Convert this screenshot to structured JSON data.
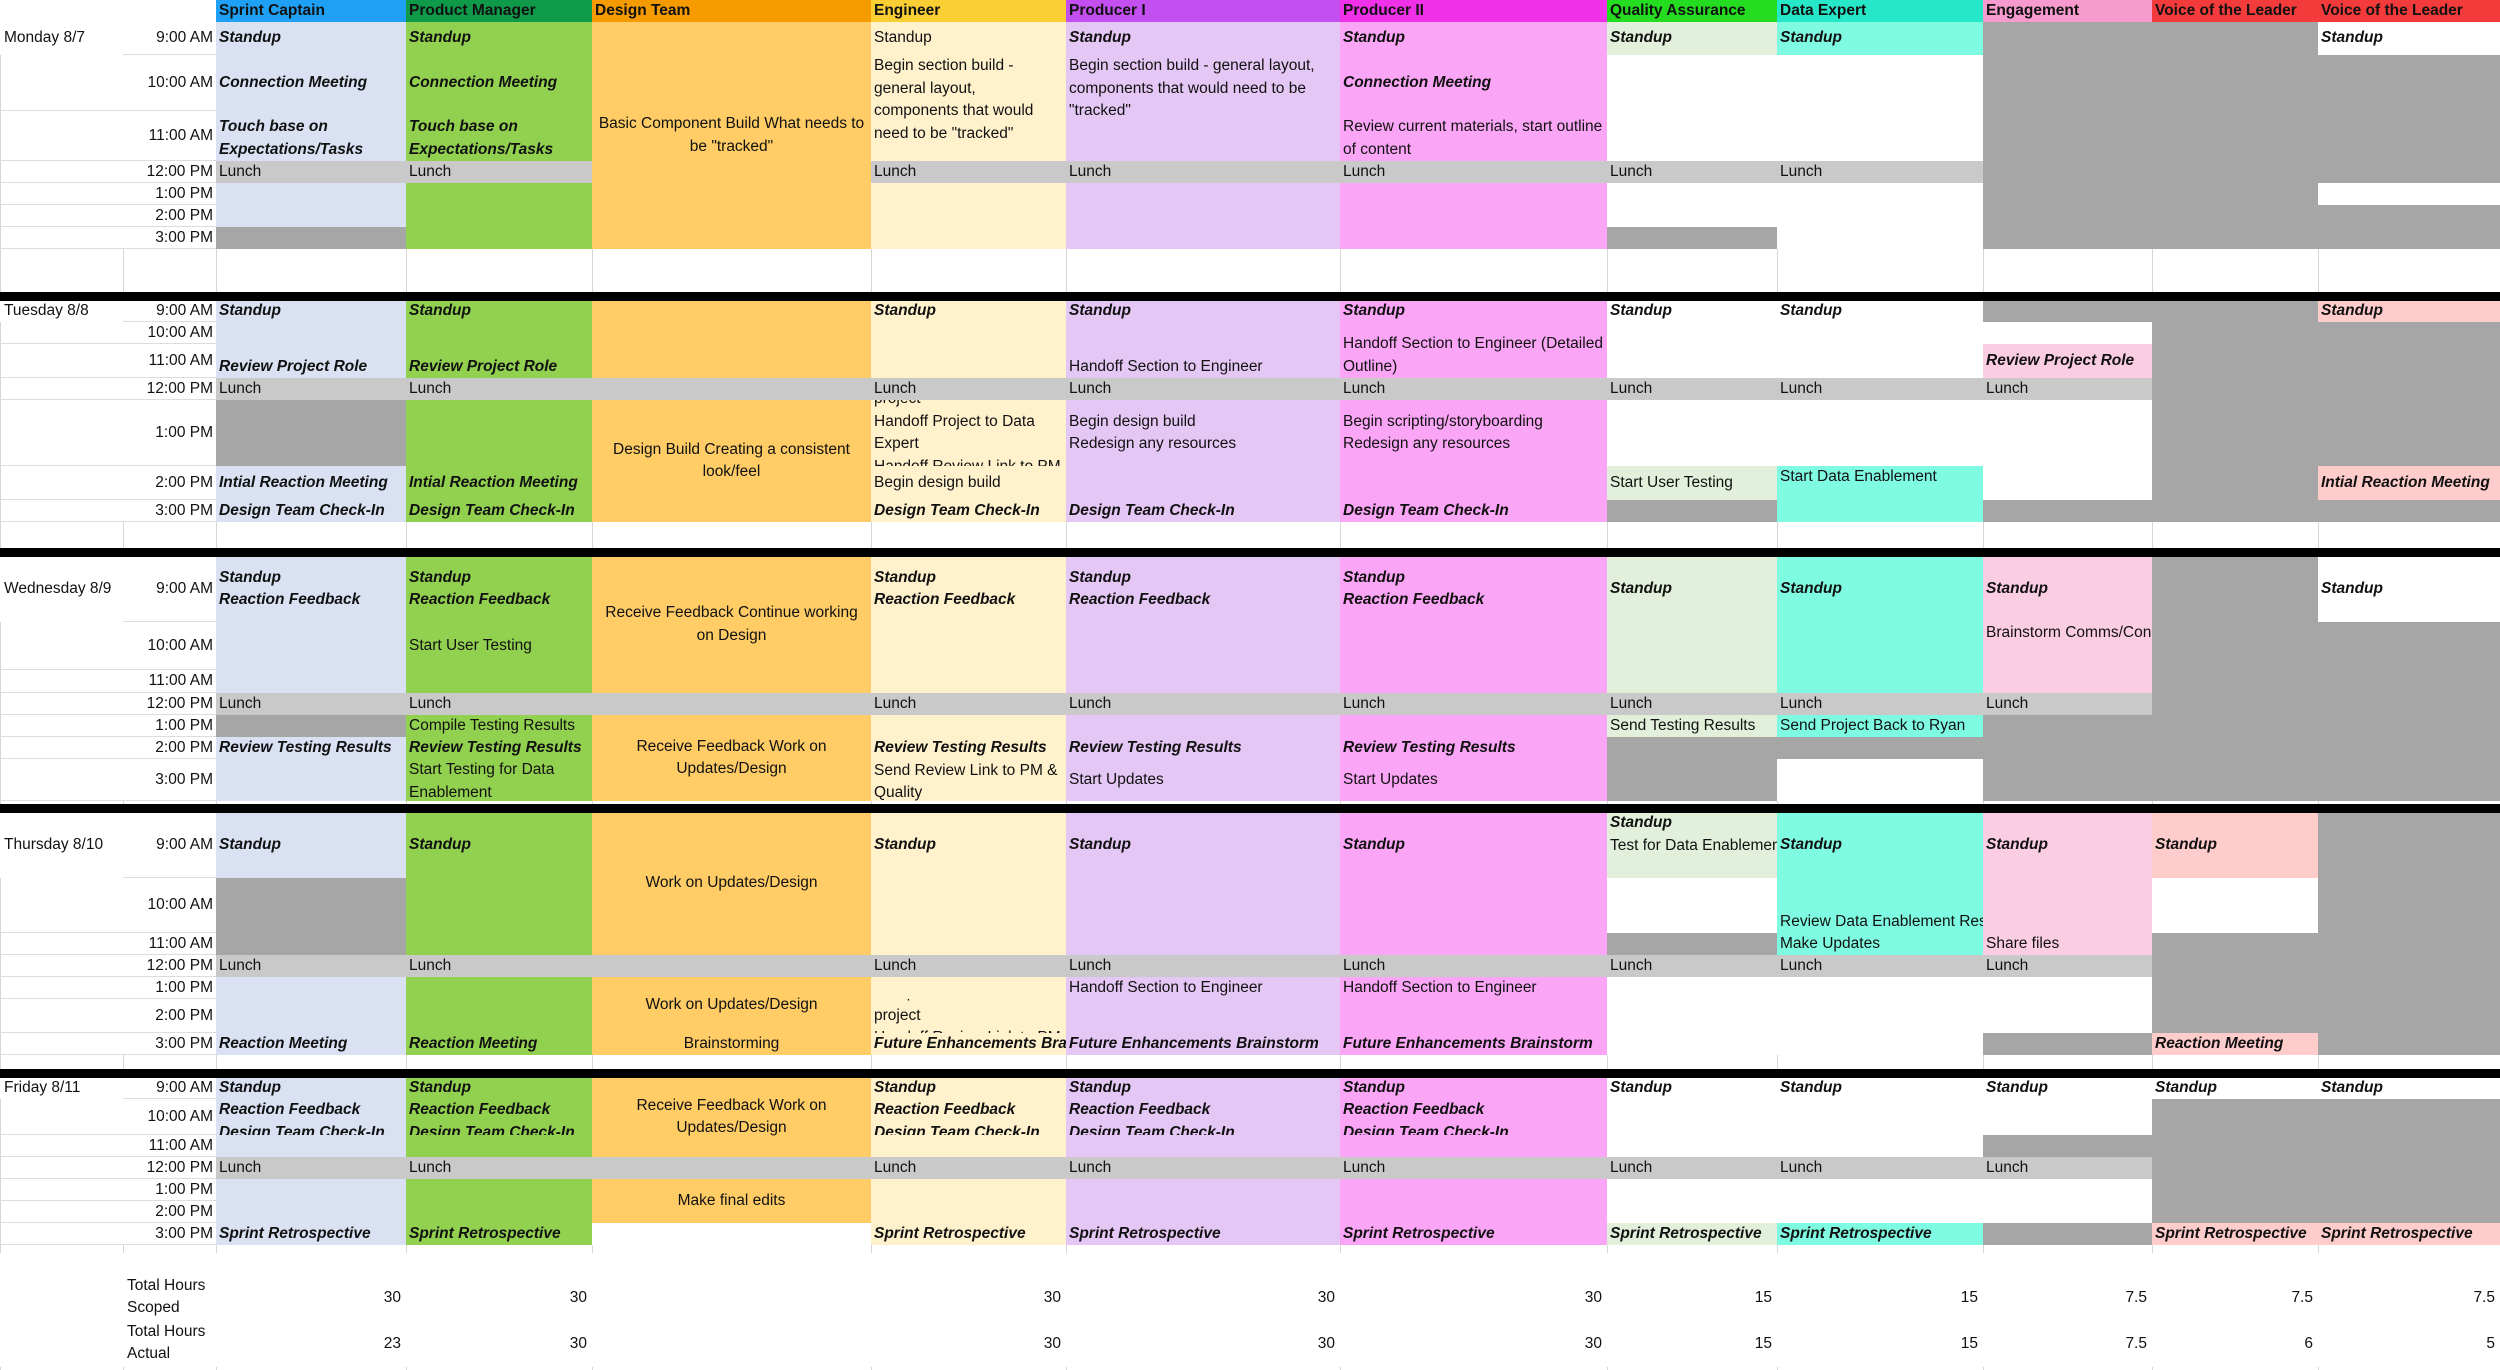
{
  "roles": [
    "Sprint Captain",
    "Product Manager",
    "Design Team",
    "Engineer",
    "Producer I",
    "Producer II",
    "Quality Assurance",
    "Data Expert",
    "Engagement",
    "Voice of the Leader",
    "Voice of the Leader"
  ],
  "colors": {
    "header": [
      "#1ea0f5",
      "#0f9a4a",
      "#f59b00",
      "#f9cf33",
      "#c44ff0",
      "#ef31e9",
      "#25dd20",
      "#26e8c9",
      "#f79bcf",
      "#f43b3b",
      "#f43b3b"
    ],
    "column": [
      "#d9e1f2",
      "#92d050",
      "#ffcc66",
      "#fff1cc",
      "#e5c7f5",
      "#fba5f6",
      "#e2efda",
      "#7ffbe1",
      "#fbcde2",
      "#ffcccc",
      "#ffcccc"
    ],
    "gray": "#a6a6a6",
    "lunch": "#c9c9c9",
    "separator": "#000000"
  },
  "days": [
    "Monday 8/7",
    "Tuesday 8/8",
    "Wednesday 8/9",
    "Thursday 8/10",
    "Friday 8/11"
  ],
  "times": [
    "9:00 AM",
    "10:00 AM",
    "11:00 AM",
    "12:00 PM",
    "1:00 PM",
    "2:00 PM",
    "3:00 PM"
  ],
  "events": {
    "standup": "Standup",
    "lunch": "Lunch",
    "connection_meeting": "Connection Meeting",
    "touch_base": "Touch base on Expectations/Tasks",
    "basic_component_build": "Basic Component Build What needs to be \"tracked\"",
    "begin_section_build": "Begin section build - general layout, components that would need to be \"tracked\"",
    "review_current_materials": "Review current materials, start outline of content",
    "review_project_role": "Review Project Role",
    "handoff_section": "Handoff Section to Engineer",
    "handoff_detailed": "Handoff Section to Engineer (Detailed Outline)",
    "design_build": "Design Build Creating a consistent look/feel",
    "compile_sections_data": "Compile sections into one project\nHandoff Project to Data Expert\nHandoff Review Link to PM & Quality",
    "begin_design_build_redesign": "Begin design build\nRedesign any resources",
    "begin_scripting": "Begin scripting/storyboarding\nRedesign any resources",
    "initial_reaction_meeting": "Intial Reaction Meeting",
    "begin_design_build": "Begin design build",
    "start_user_testing": "Start User Testing",
    "start_data_enablement": "Start Data Enablement",
    "design_team_check_in": "Design Team Check-In",
    "reaction_feedback": "Reaction Feedback",
    "receive_feedback_continue": "Receive Feedback Continue working on Design",
    "brainstorm_comms": "Brainstorm Comms/Connections",
    "compile_testing_results": "Compile Testing Results",
    "review_testing_results": "Review Testing Results",
    "start_testing_data": "Start Testing for Data Enablement",
    "receive_feedback_work": "Receive Feedback Work on Updates/Design",
    "send_review_link": "Send Review Link to PM & Quality",
    "start_updates": "Start Updates",
    "send_testing_results": "Send Testing Results",
    "send_project_back": "Send Project Back to Ryan",
    "test_for_data_enablement": "Test for Data Enablement",
    "work_on_updates": "Work on Updates/Design",
    "review_data_results": "Review Data Enablement Results",
    "make_updates": "Make Updates",
    "share_files": "Share files",
    "brainstorming": "Brainstorming",
    "compile_sections_pm": "Compile sections into one project\nHandoff Review Link to PM",
    "future_enhancements": "Future Enhancements Brainstorm",
    "reaction_meeting": "Reaction Meeting",
    "make_final_edits": "Make final edits",
    "sprint_retrospective": "Sprint Retrospective"
  },
  "totals": {
    "scoped_label": "Total Hours Scoped",
    "actual_label": "Total Hours Actual",
    "scoped": [
      "30",
      "30",
      "",
      "30",
      "30",
      "30",
      "15",
      "15",
      "7.5",
      "7.5",
      "7.5"
    ],
    "actual": [
      "23",
      "30",
      "",
      "30",
      "30",
      "30",
      "15",
      "15",
      "7.5",
      "6",
      "5"
    ]
  }
}
